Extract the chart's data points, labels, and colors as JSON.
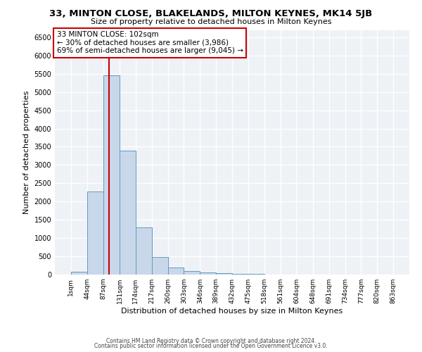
{
  "title": "33, MINTON CLOSE, BLAKELANDS, MILTON KEYNES, MK14 5JB",
  "subtitle": "Size of property relative to detached houses in Milton Keynes",
  "xlabel": "Distribution of detached houses by size in Milton Keynes",
  "ylabel": "Number of detached properties",
  "bin_edges": [
    1,
    44,
    87,
    131,
    174,
    217,
    260,
    303,
    346,
    389,
    432,
    475,
    518,
    561,
    604,
    648,
    691,
    734,
    777,
    820,
    863
  ],
  "bin_counts": [
    75,
    2270,
    5450,
    3400,
    1300,
    490,
    200,
    95,
    55,
    35,
    20,
    10,
    8,
    5,
    4,
    3,
    2,
    2,
    1,
    1
  ],
  "bar_color": "#c8d8ea",
  "bar_edge_color": "#6699bb",
  "vline_x": 102,
  "vline_color": "#cc0000",
  "annotation_text": "33 MINTON CLOSE: 102sqm\n← 30% of detached houses are smaller (3,986)\n69% of semi-detached houses are larger (9,045) →",
  "annotation_box_color": "white",
  "annotation_box_edge_color": "#cc0000",
  "ylim": [
    0,
    6700
  ],
  "yticks": [
    0,
    500,
    1000,
    1500,
    2000,
    2500,
    3000,
    3500,
    4000,
    4500,
    5000,
    5500,
    6000,
    6500
  ],
  "footer_line1": "Contains HM Land Registry data © Crown copyright and database right 2024.",
  "footer_line2": "Contains public sector information licensed under the Open Government Licence v3.0.",
  "bg_color": "#ffffff",
  "plot_bg_color": "#eef2f7"
}
